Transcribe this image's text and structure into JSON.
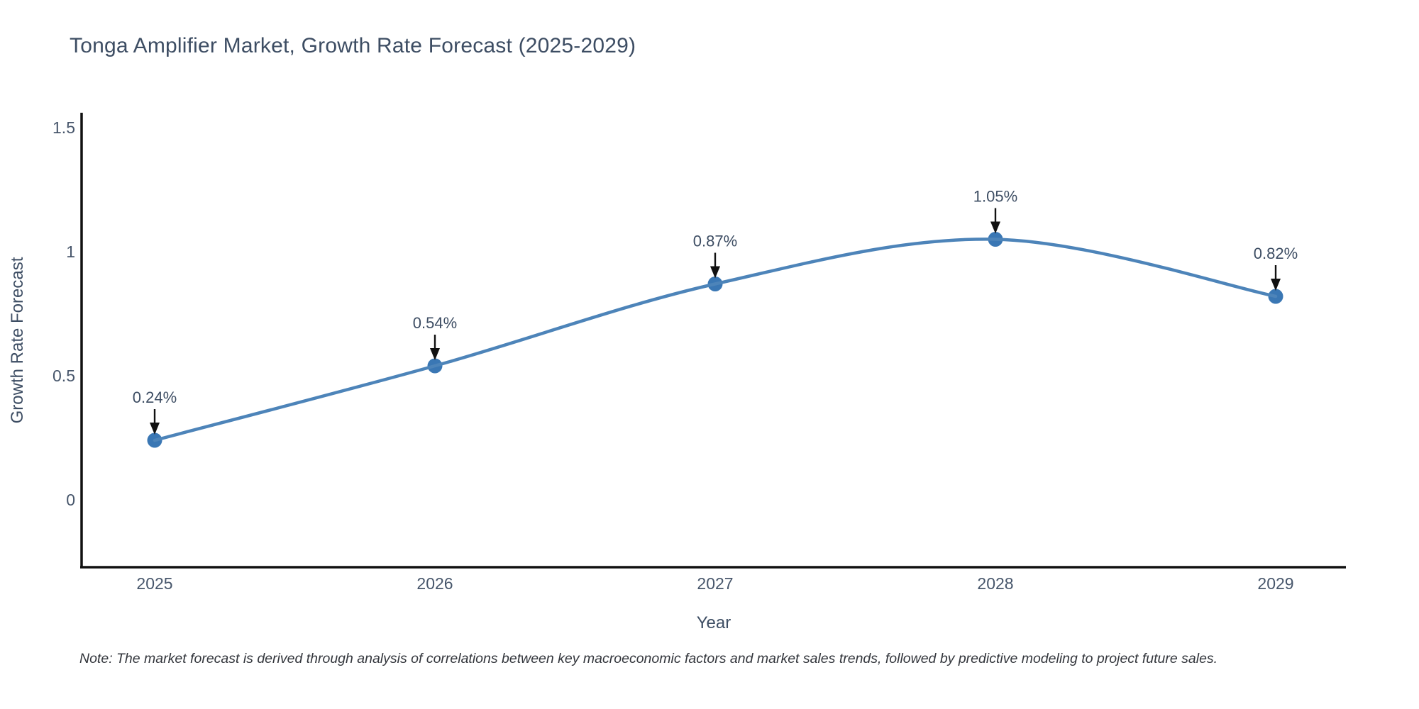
{
  "chart_data": {
    "type": "line",
    "title": "Tonga Amplifier Market, Growth Rate Forecast (2025-2029)",
    "xlabel": "Year",
    "ylabel": "Growth Rate Forecast",
    "categories": [
      "2025",
      "2026",
      "2027",
      "2028",
      "2029"
    ],
    "values": [
      0.24,
      0.54,
      0.87,
      1.05,
      0.82
    ],
    "point_labels": [
      "0.24%",
      "0.54%",
      "0.87%",
      "1.05%",
      "0.82%"
    ],
    "ytick_labels": [
      "0",
      "0.5",
      "1",
      "1.5"
    ],
    "ytick_values": [
      0,
      0.5,
      1,
      1.5
    ],
    "ylim": [
      -0.28,
      1.56
    ],
    "line_shape": "spline",
    "grid": false,
    "legend_position": "none",
    "annotation_style": "value label with black down-arrow above each marker",
    "note": "Note: The market forecast is derived through analysis of correlations between key macroeconomic factors and market sales trends, followed by predictive modeling to project future sales.",
    "colors": {
      "line": "#4d84b9",
      "marker": "#3a77b4",
      "arrow": "#111111",
      "axis_line": "#111111",
      "title_text": "#3d4d63",
      "tick_text": "#47566b",
      "note_text": "#33363c",
      "background": "#ffffff"
    }
  }
}
